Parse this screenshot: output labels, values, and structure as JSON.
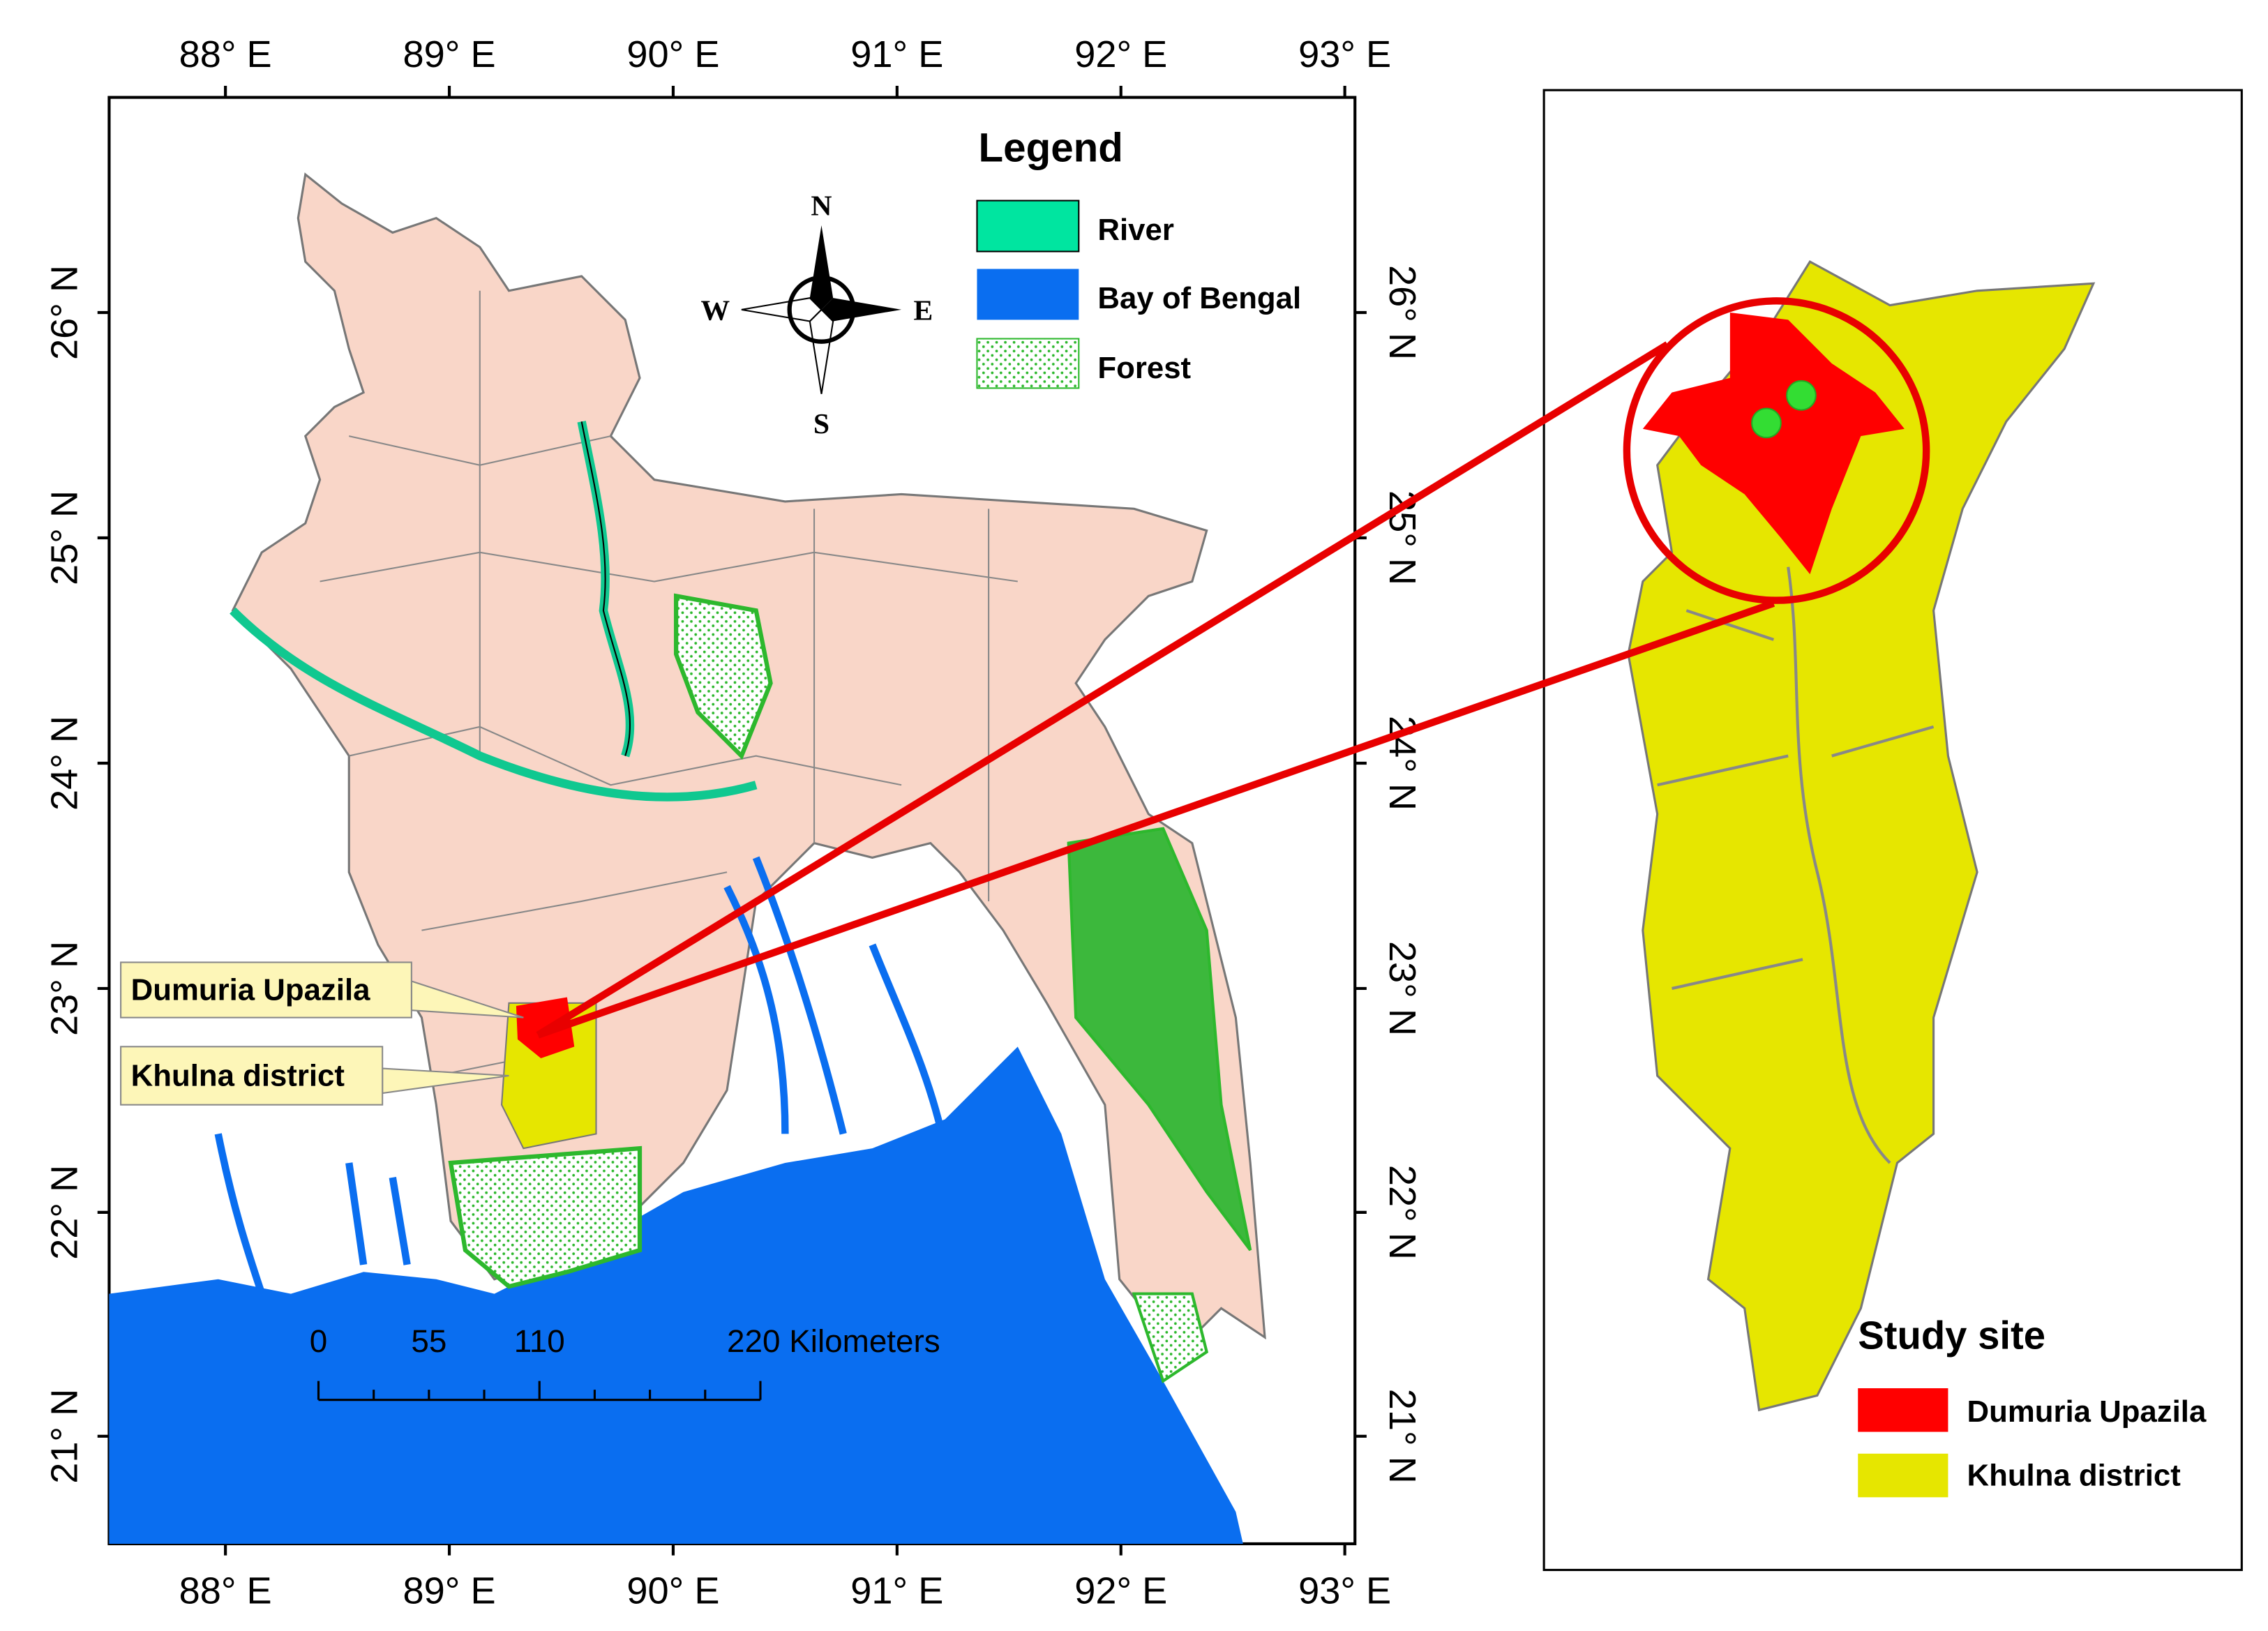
{
  "map": {
    "lon_labels": [
      "88° E",
      "89° E",
      "90° E",
      "91° E",
      "92° E",
      "93° E"
    ],
    "lat_labels": [
      "26° N",
      "25° N",
      "24° N",
      "23° N",
      "22° N",
      "21° N"
    ],
    "legend": {
      "title": "Legend",
      "items": [
        "River",
        "Bay of Bengal",
        "Forest"
      ]
    },
    "compass": {
      "north": "N",
      "south": "S",
      "west": "W",
      "east": "E"
    },
    "callouts": [
      "Dumuria Upazila",
      "Khulna district"
    ],
    "scale_bar": {
      "labels": [
        "0",
        "55",
        "110",
        "220 Kilometers"
      ]
    }
  },
  "inset": {
    "legend": {
      "title": "Study site",
      "items": [
        "Dumuria Upazila",
        "Khulna district"
      ]
    }
  }
}
